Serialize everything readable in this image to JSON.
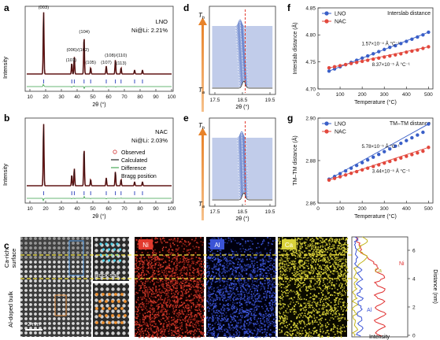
{
  "panel_letters": {
    "a": "a",
    "b": "b",
    "c": "c",
    "d": "d",
    "e": "e",
    "f": "f",
    "g": "g"
  },
  "xrd": {
    "a": {
      "title": "LNO",
      "subtitle": "Ni@Li: 2.21%",
      "peaks": [
        "(003)",
        "(101)",
        "(006)/(102)",
        "(104)",
        "(105)",
        "(107)",
        "(108)/(110)",
        "(113)"
      ]
    },
    "b": {
      "title": "NAC",
      "subtitle": "Ni@Li: 2.03%",
      "legend": [
        "Observed",
        "Calculated",
        "Difference",
        "Bragg position"
      ]
    },
    "ylabel": "Intensity",
    "xlabel": "2θ (°)",
    "xticks": [
      "10",
      "20",
      "30",
      "40",
      "50",
      "60",
      "70",
      "80",
      "90",
      "100"
    ]
  },
  "insitu": {
    "xlabel": "2θ (°)",
    "xticks": [
      "17.5",
      "18.5",
      "19.5"
    ],
    "t_high": "T",
    "t_high_sub": "h",
    "t_low": "T",
    "t_low_sub": "a"
  },
  "panel_c": {
    "left_labels": [
      "Ca-rich",
      "surface",
      "Al-doped bulk"
    ],
    "scale_label": "2 nm",
    "rock_salt": "Rock-salt",
    "maps": [
      "Ni",
      "Al",
      "Ca"
    ],
    "profile_labels": [
      "Ni",
      "Ca",
      "Al"
    ],
    "profile_xlabel": "Intensity",
    "profile_ylabel": "Distance (nm)",
    "profile_ticks": [
      "0",
      "2",
      "4",
      "6"
    ]
  },
  "chart_data": [
    {
      "type": "line",
      "panel": "f",
      "title": "Interslab distance",
      "xlabel": "Temperature (°C)",
      "ylabel": "Interslab distance (Å)",
      "xlim": [
        0,
        520
      ],
      "ylim": [
        4.7,
        4.85
      ],
      "xticks": [
        "0",
        "100",
        "200",
        "300",
        "400",
        "500"
      ],
      "yticks": [
        "4.70",
        "4.75",
        "4.80",
        "4.85"
      ],
      "x": [
        50,
        75,
        100,
        125,
        150,
        175,
        200,
        225,
        250,
        275,
        300,
        325,
        350,
        375,
        400,
        425,
        450,
        475,
        500
      ],
      "series": [
        {
          "name": "LNO",
          "color": "#3a5fc8",
          "annotation": "1.57×10⁻⁴ Å °C⁻¹",
          "values": [
            4.733,
            4.737,
            4.741,
            4.745,
            4.749,
            4.753,
            4.757,
            4.761,
            4.765,
            4.769,
            4.773,
            4.777,
            4.78,
            4.784,
            4.788,
            4.792,
            4.796,
            4.8,
            4.805
          ]
        },
        {
          "name": "NAC",
          "color": "#e2483d",
          "annotation": "8.37×10⁻⁵ Å °C⁻¹",
          "values": [
            4.739,
            4.741,
            4.743,
            4.745,
            4.747,
            4.749,
            4.751,
            4.753,
            4.755,
            4.757,
            4.759,
            4.761,
            4.763,
            4.765,
            4.768,
            4.77,
            4.772,
            4.775,
            4.778
          ]
        }
      ]
    },
    {
      "type": "line",
      "panel": "g",
      "title": "TM–TM distance",
      "xlabel": "Temperature (°C)",
      "ylabel": "TM–TM distance (Å)",
      "xlim": [
        0,
        520
      ],
      "ylim": [
        2.86,
        2.9
      ],
      "xticks": [
        "0",
        "100",
        "200",
        "300",
        "400",
        "500"
      ],
      "yticks": [
        "2.86",
        "2.88",
        "2.90"
      ],
      "x": [
        50,
        75,
        100,
        125,
        150,
        175,
        200,
        225,
        250,
        275,
        300,
        325,
        350,
        375,
        400,
        425,
        450,
        475,
        500
      ],
      "series": [
        {
          "name": "LNO",
          "color": "#3a5fc8",
          "annotation": "5.78×10⁻⁵ Å °C⁻¹",
          "values": [
            2.8712,
            2.8725,
            2.8738,
            2.8751,
            2.8764,
            2.8777,
            2.879,
            2.8803,
            2.8816,
            2.8829,
            2.8842,
            2.8855,
            2.8868,
            2.8881,
            2.8894,
            2.8907,
            2.892,
            2.8933,
            2.8972
          ]
        },
        {
          "name": "NAC",
          "color": "#e2483d",
          "annotation": "3.44×10⁻⁵ Å °C⁻¹",
          "values": [
            2.8708,
            2.8716,
            2.8724,
            2.8732,
            2.874,
            2.8748,
            2.8756,
            2.8764,
            2.8772,
            2.878,
            2.8788,
            2.8796,
            2.8804,
            2.8812,
            2.882,
            2.8828,
            2.8836,
            2.8844,
            2.8862
          ]
        }
      ]
    }
  ]
}
